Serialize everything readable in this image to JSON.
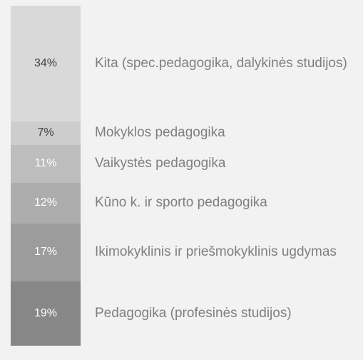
{
  "chart_data": {
    "type": "stacked_column",
    "categories": [
      "Kita (spec.pedagogika, dalykinės studijos)",
      "Mokyklos pedagogika",
      "Vaikystės pedagogika",
      "Kūno k. ir sporto pedagogika",
      "Ikimokyklinis ir priešmokyklinis ugdymas",
      "Pedagogika (profesinės studijos)"
    ],
    "values": [
      34,
      7,
      11,
      12,
      17,
      19
    ],
    "value_labels": [
      "34%",
      "7%",
      "11%",
      "12%",
      "17%",
      "19%"
    ],
    "colors": [
      "#d9d9d9",
      "#cdcdcd",
      "#bdbdbd",
      "#adadad",
      "#9c9c9c",
      "#878787"
    ],
    "ylim": [
      0,
      100
    ]
  }
}
